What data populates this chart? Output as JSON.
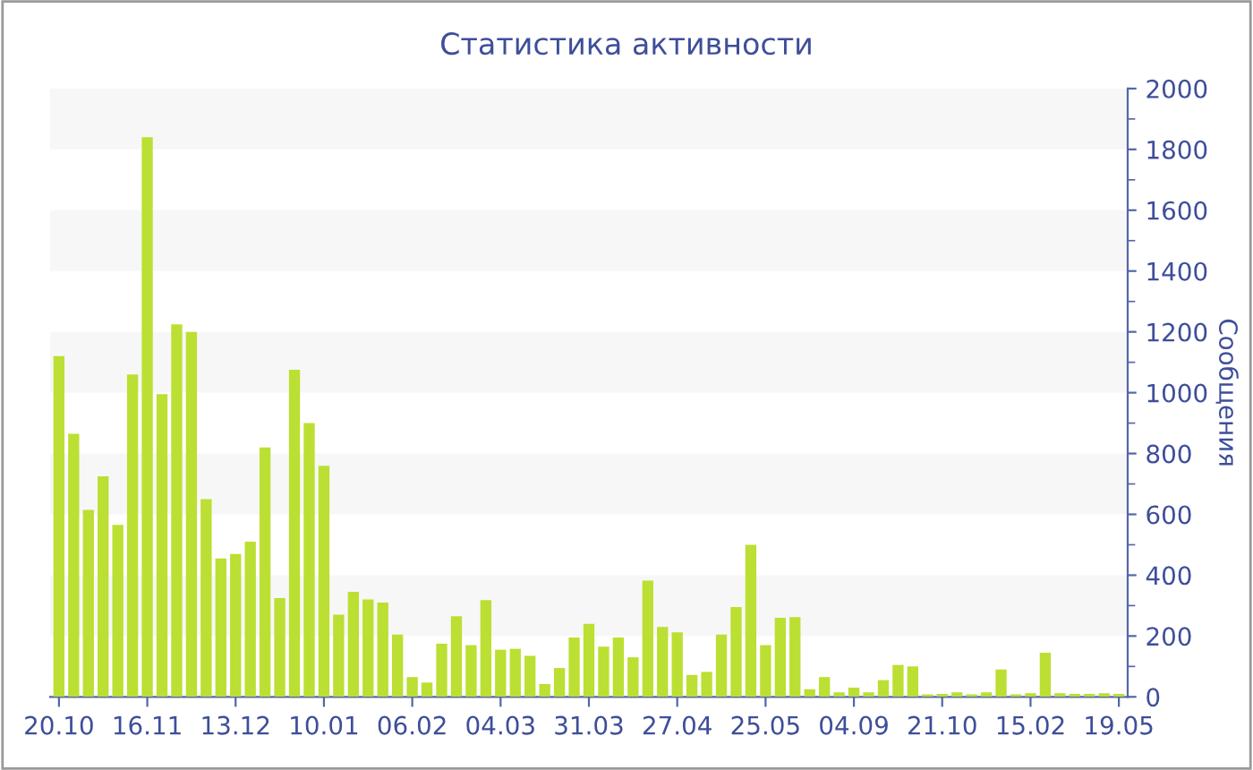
{
  "chart_data": {
    "type": "bar",
    "title": "Статистика активности",
    "ylabel": "Сообщения",
    "categories": [
      "20.10",
      null,
      null,
      null,
      null,
      null,
      "16.11",
      null,
      null,
      null,
      null,
      null,
      "13.12",
      null,
      null,
      null,
      null,
      null,
      "10.01",
      null,
      null,
      null,
      null,
      null,
      "06.02",
      null,
      null,
      null,
      null,
      null,
      "04.03",
      null,
      null,
      null,
      null,
      null,
      "31.03",
      null,
      null,
      null,
      null,
      null,
      "27.04",
      null,
      null,
      null,
      null,
      null,
      "25.05",
      null,
      null,
      null,
      null,
      null,
      "04.09",
      null,
      null,
      null,
      null,
      null,
      "21.10",
      null,
      null,
      null,
      null,
      null,
      "15.02",
      null,
      null,
      null,
      null,
      null,
      "19.05"
    ],
    "values": [
      1120,
      865,
      615,
      725,
      565,
      1060,
      1840,
      995,
      1225,
      1200,
      650,
      455,
      470,
      510,
      820,
      325,
      1075,
      900,
      760,
      270,
      345,
      320,
      310,
      205,
      65,
      47,
      175,
      265,
      170,
      318,
      155,
      158,
      135,
      42,
      95,
      195,
      240,
      165,
      195,
      130,
      382,
      230,
      212,
      72,
      82,
      205,
      295,
      500,
      170,
      260,
      262,
      25,
      65,
      15,
      30,
      15,
      55,
      105,
      100,
      8,
      10,
      15,
      8,
      15,
      90,
      8,
      12,
      145,
      12,
      10,
      10,
      12,
      10
    ],
    "color": "#bbdf32",
    "ylim": [
      0,
      2000
    ],
    "yticks": [
      0,
      200,
      400,
      600,
      800,
      1000,
      1200,
      1400,
      1600,
      1800,
      2000
    ],
    "bands": [
      {
        "axis": "y",
        "from": 200,
        "to": 400,
        "color": "#f7f7f7"
      },
      {
        "axis": "y",
        "from": 600,
        "to": 800,
        "color": "#f7f7f7"
      },
      {
        "axis": "y",
        "from": 1000,
        "to": 1200,
        "color": "#f7f7f7"
      },
      {
        "axis": "y",
        "from": 1400,
        "to": 1600,
        "color": "#f7f7f7"
      },
      {
        "axis": "y",
        "from": 1800,
        "to": 2000,
        "color": "#f7f7f7"
      }
    ],
    "legend": false
  }
}
